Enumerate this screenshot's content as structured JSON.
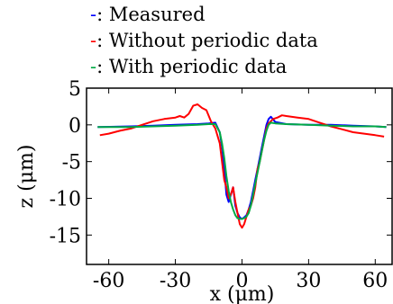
{
  "chart_data": {
    "type": "line",
    "title": "",
    "xlabel": "x (μm)",
    "ylabel": "z (μm)",
    "xlim": [
      -70,
      68
    ],
    "ylim": [
      -19,
      5
    ],
    "xticks": [
      -60,
      -30,
      0,
      30,
      60
    ],
    "xtick_labels": [
      "-60",
      "-30",
      "0",
      "30",
      "60"
    ],
    "yticks": [
      5,
      0,
      -5,
      -10,
      -15
    ],
    "ytick_labels": [
      "5",
      "0",
      "-5",
      "-10",
      "-15"
    ],
    "grid": false,
    "legend_position": "top",
    "series": [
      {
        "name": "Measured",
        "legend_label": "-: Measured",
        "color": "#0000ff",
        "x": [
          -65,
          -50,
          -40,
          -30,
          -20,
          -15,
          -12,
          -10,
          -9,
          -8,
          -7,
          -6,
          -5,
          -4,
          -3,
          -2,
          -1,
          0,
          1,
          2,
          3,
          4,
          5,
          6,
          7,
          8,
          9,
          10,
          11,
          12,
          13,
          15,
          20,
          30,
          40,
          50,
          60,
          65
        ],
        "y": [
          -0.3,
          -0.2,
          -0.1,
          0.0,
          0.1,
          0.2,
          0.3,
          -1.0,
          -3.0,
          -6.0,
          -9.5,
          -10.5,
          -9.5,
          -8.5,
          -11.0,
          -12.0,
          -12.6,
          -12.8,
          -12.6,
          -12.3,
          -11.5,
          -10.5,
          -9.0,
          -7.5,
          -6.0,
          -4.5,
          -3.0,
          -1.5,
          0.0,
          0.8,
          1.1,
          0.4,
          0.1,
          0.0,
          0.0,
          -0.1,
          -0.2,
          -0.3
        ]
      },
      {
        "name": "Without periodic data",
        "legend_label": "-: Without periodic data",
        "color": "#ff0000",
        "x": [
          -64,
          -60,
          -55,
          -50,
          -45,
          -40,
          -35,
          -30,
          -28,
          -26,
          -24,
          -22,
          -20,
          -18,
          -16,
          -14,
          -12,
          -10,
          -9,
          -8,
          -7,
          -6,
          -5,
          -4,
          -3,
          -2,
          -1,
          0,
          1,
          2,
          3,
          4,
          5,
          6,
          7,
          8,
          9,
          10,
          11,
          12,
          13,
          14,
          16,
          18,
          20,
          25,
          30,
          35,
          40,
          45,
          50,
          55,
          60,
          64
        ],
        "y": [
          -1.4,
          -1.2,
          -0.8,
          -0.5,
          0.0,
          0.5,
          0.8,
          1.0,
          1.2,
          1.0,
          1.5,
          2.6,
          2.8,
          2.3,
          2.0,
          0.5,
          -0.5,
          -2.5,
          -5.0,
          -7.5,
          -8.5,
          -10.0,
          -9.5,
          -8.5,
          -10.5,
          -12.0,
          -13.5,
          -14.0,
          -13.5,
          -12.5,
          -11.5,
          -11.0,
          -10.0,
          -8.5,
          -6.0,
          -5.0,
          -3.5,
          -2.0,
          -0.5,
          0.2,
          0.5,
          0.8,
          1.0,
          1.3,
          1.2,
          1.0,
          0.8,
          0.3,
          -0.2,
          -0.6,
          -1.0,
          -1.2,
          -1.4,
          -1.6
        ]
      },
      {
        "name": "With periodic data",
        "legend_label": "-: With periodic data",
        "color": "#00aa44",
        "x": [
          -65,
          -50,
          -40,
          -30,
          -20,
          -15,
          -12,
          -10,
          -9,
          -8,
          -7,
          -6,
          -5,
          -4,
          -3,
          -2,
          -1,
          0,
          1,
          2,
          3,
          4,
          5,
          6,
          7,
          8,
          9,
          10,
          11,
          12,
          13,
          15,
          20,
          30,
          40,
          50,
          60,
          65
        ],
        "y": [
          -0.3,
          -0.3,
          -0.2,
          -0.1,
          0.0,
          0.1,
          0.1,
          -1.0,
          -2.5,
          -4.5,
          -7.0,
          -9.0,
          -10.5,
          -11.5,
          -12.3,
          -12.7,
          -12.8,
          -12.8,
          -12.7,
          -12.5,
          -12.0,
          -11.0,
          -9.5,
          -8.0,
          -6.5,
          -5.0,
          -3.5,
          -2.0,
          -0.8,
          0.0,
          0.3,
          0.2,
          0.1,
          0.0,
          -0.1,
          -0.2,
          -0.2,
          -0.3
        ]
      }
    ]
  }
}
